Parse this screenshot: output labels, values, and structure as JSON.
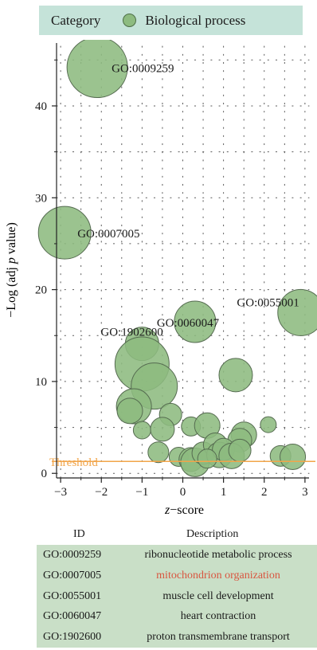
{
  "legend": {
    "title": "Category",
    "items": [
      {
        "label": "Biological process",
        "color": "#8dbb80"
      }
    ]
  },
  "chart_data": {
    "type": "scatter",
    "subtype": "bubble",
    "xlabel_var": "z",
    "xlabel_rest": "−score",
    "ylabel_parts": [
      "−Log (adj ",
      "p",
      " value)"
    ],
    "xlim": [
      -3.1,
      3.1
    ],
    "ylim": [
      -0.5,
      46.5
    ],
    "xticks": [
      -3,
      -2,
      -1,
      0,
      1,
      2,
      3
    ],
    "xtick_labels": [
      "−3",
      "−2",
      "−1",
      "0",
      "1",
      "2",
      "3"
    ],
    "yticks": [
      0,
      10,
      20,
      30,
      40
    ],
    "yticks_minor": [
      5,
      15,
      25,
      35,
      45
    ],
    "grid": true,
    "threshold": {
      "y": 1.3,
      "label": "Threshold",
      "color": "#f2a54a"
    },
    "bubble_color": "#8dbb80",
    "series": [
      {
        "points": [
          {
            "x": -2.1,
            "y": 44.2,
            "size": 38,
            "label": "GO:0009259"
          },
          {
            "x": -2.9,
            "y": 26.2,
            "size": 33,
            "label": "GO:0007005"
          },
          {
            "x": 2.9,
            "y": 17.5,
            "size": 29,
            "label": "GO:0055001"
          },
          {
            "x": 0.3,
            "y": 16.5,
            "size": 26,
            "label": "GO:0060047"
          },
          {
            "x": -1.0,
            "y": 14.1,
            "size": 21,
            "label": "GO:1902600"
          },
          {
            "x": -1.0,
            "y": 11.9,
            "size": 34
          },
          {
            "x": -0.7,
            "y": 9.5,
            "size": 29
          },
          {
            "x": 1.3,
            "y": 10.7,
            "size": 21
          },
          {
            "x": -1.2,
            "y": 7.3,
            "size": 22
          },
          {
            "x": -1.3,
            "y": 6.8,
            "size": 16
          },
          {
            "x": -0.3,
            "y": 6.4,
            "size": 14
          },
          {
            "x": -1.0,
            "y": 4.7,
            "size": 11
          },
          {
            "x": -0.5,
            "y": 4.8,
            "size": 15
          },
          {
            "x": 0.2,
            "y": 5.1,
            "size": 12
          },
          {
            "x": 0.6,
            "y": 5.2,
            "size": 16
          },
          {
            "x": 1.5,
            "y": 4.2,
            "size": 16
          },
          {
            "x": 1.4,
            "y": 3.6,
            "size": 15
          },
          {
            "x": 2.1,
            "y": 5.3,
            "size": 10
          },
          {
            "x": -0.6,
            "y": 2.3,
            "size": 13
          },
          {
            "x": -0.1,
            "y": 1.8,
            "size": 12
          },
          {
            "x": 0.2,
            "y": 1.5,
            "size": 15
          },
          {
            "x": 0.3,
            "y": 1.2,
            "size": 18
          },
          {
            "x": 0.5,
            "y": 2.2,
            "size": 14
          },
          {
            "x": 0.8,
            "y": 3.1,
            "size": 15
          },
          {
            "x": 0.9,
            "y": 2.0,
            "size": 16
          },
          {
            "x": 1.0,
            "y": 2.6,
            "size": 14
          },
          {
            "x": 1.2,
            "y": 1.9,
            "size": 16
          },
          {
            "x": 1.4,
            "y": 2.5,
            "size": 14
          },
          {
            "x": 0.6,
            "y": 1.6,
            "size": 12
          },
          {
            "x": 2.4,
            "y": 1.9,
            "size": 13
          },
          {
            "x": 2.7,
            "y": 1.8,
            "size": 16
          }
        ]
      }
    ]
  },
  "table": {
    "headers": {
      "id": "ID",
      "description": "Description"
    },
    "rows": [
      {
        "id": "GO:0009259",
        "description": "ribonucleotide metabolic process"
      },
      {
        "id": "GO:0007005",
        "description": "mitochondrion organization"
      },
      {
        "id": "GO:0055001",
        "description": "muscle cell development"
      },
      {
        "id": "GO:0060047",
        "description": "heart contraction"
      },
      {
        "id": "GO:1902600",
        "description": "proton transmembrane transport"
      }
    ],
    "highlight_color": "#d9553f"
  }
}
